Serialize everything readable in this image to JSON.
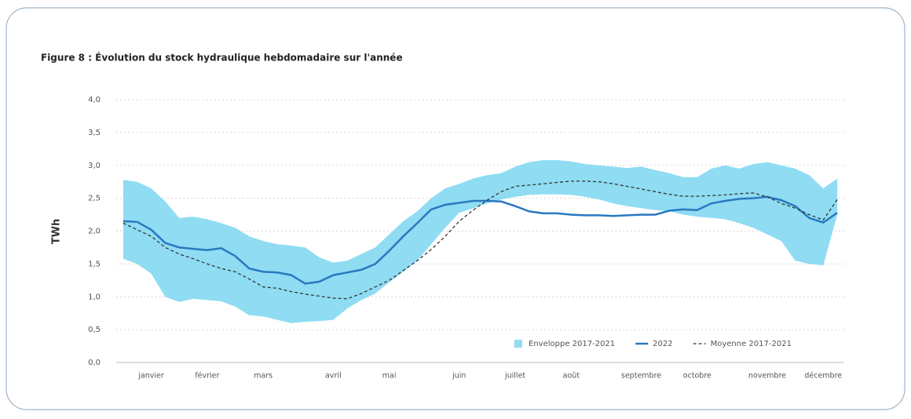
{
  "chart_data": {
    "type": "line",
    "title": "Figure 8 : Évolution du stock hydraulique hebdomadaire sur l'année",
    "y_label": "TWh",
    "categories": [
      null,
      null,
      "janvier",
      null,
      null,
      null,
      "février",
      null,
      null,
      null,
      "mars",
      null,
      null,
      null,
      null,
      "avril",
      null,
      null,
      null,
      "mai",
      null,
      null,
      null,
      null,
      "juin",
      null,
      null,
      null,
      "juillet",
      null,
      null,
      null,
      "août",
      null,
      null,
      null,
      null,
      "septembre",
      null,
      null,
      null,
      "octobre",
      null,
      null,
      null,
      null,
      "novembre",
      null,
      null,
      null,
      "décembre",
      null
    ],
    "series": [
      {
        "name": "Enveloppe 2017-2021",
        "kind": "band",
        "color": "#8fdcf3",
        "values": [
          2.78,
          2.75,
          2.65,
          2.45,
          2.2,
          2.22,
          2.18,
          2.12,
          2.05,
          1.92,
          1.85,
          1.8,
          1.78,
          1.75,
          1.6,
          1.52,
          1.55,
          1.65,
          1.75,
          1.95,
          2.15,
          2.3,
          2.5,
          2.65,
          2.72,
          2.8,
          2.85,
          2.88,
          2.98,
          3.05,
          3.08,
          3.08,
          3.06,
          3.02,
          3.0,
          2.98,
          2.96,
          2.98,
          2.93,
          2.88,
          2.82,
          2.82,
          2.95,
          3.0,
          2.95,
          3.02,
          3.05,
          3.0,
          2.95,
          2.85,
          2.65,
          2.8
        ],
        "lower": [
          1.58,
          1.5,
          1.35,
          1.0,
          0.92,
          0.97,
          0.95,
          0.93,
          0.85,
          0.72,
          0.7,
          0.65,
          0.6,
          0.62,
          0.63,
          0.65,
          0.82,
          0.95,
          1.05,
          1.22,
          1.38,
          1.55,
          1.8,
          2.05,
          2.28,
          2.35,
          2.42,
          2.48,
          2.52,
          2.55,
          2.56,
          2.56,
          2.55,
          2.52,
          2.48,
          2.42,
          2.38,
          2.35,
          2.32,
          2.3,
          2.25,
          2.22,
          2.2,
          2.18,
          2.12,
          2.05,
          1.95,
          1.85,
          1.55,
          1.5,
          1.48,
          2.25
        ]
      },
      {
        "name": "2022",
        "kind": "solid",
        "color": "#2a78c0",
        "values": [
          2.15,
          2.14,
          2.02,
          1.82,
          1.75,
          1.73,
          1.71,
          1.74,
          1.62,
          1.43,
          1.38,
          1.37,
          1.33,
          1.2,
          1.23,
          1.33,
          1.37,
          1.41,
          1.5,
          1.7,
          1.92,
          2.12,
          2.33,
          2.4,
          2.43,
          2.46,
          2.46,
          2.45,
          2.38,
          2.3,
          2.27,
          2.27,
          2.25,
          2.24,
          2.24,
          2.23,
          2.24,
          2.25,
          2.25,
          2.31,
          2.33,
          2.32,
          2.42,
          2.46,
          2.49,
          2.5,
          2.52,
          2.47,
          2.38,
          2.2,
          2.13,
          2.28
        ]
      },
      {
        "name": "Moyenne 2017-2021",
        "kind": "dashed",
        "color": "#333333",
        "values": [
          2.12,
          2.02,
          1.92,
          1.75,
          1.65,
          1.58,
          1.5,
          1.43,
          1.38,
          1.27,
          1.15,
          1.13,
          1.08,
          1.04,
          1.01,
          0.98,
          0.97,
          1.05,
          1.15,
          1.25,
          1.4,
          1.55,
          1.72,
          1.92,
          2.15,
          2.32,
          2.47,
          2.6,
          2.68,
          2.7,
          2.72,
          2.74,
          2.76,
          2.76,
          2.75,
          2.72,
          2.68,
          2.64,
          2.6,
          2.56,
          2.53,
          2.53,
          2.54,
          2.55,
          2.57,
          2.58,
          2.52,
          2.42,
          2.35,
          2.25,
          2.17,
          2.48
        ]
      }
    ],
    "ylim": [
      0,
      4
    ],
    "yticks": [
      {
        "value": 0,
        "label": "0,0"
      },
      {
        "value": 0.5,
        "label": "0,5"
      },
      {
        "value": 1,
        "label": "1,0"
      },
      {
        "value": 1.5,
        "label": "1,5"
      },
      {
        "value": 2,
        "label": "2,0"
      },
      {
        "value": 2.5,
        "label": "2,5"
      },
      {
        "value": 3,
        "label": "3,0"
      },
      {
        "value": 3.5,
        "label": "3,5"
      },
      {
        "value": 4,
        "label": "4,0"
      }
    ],
    "grid": true,
    "legend": "bottom-right"
  }
}
